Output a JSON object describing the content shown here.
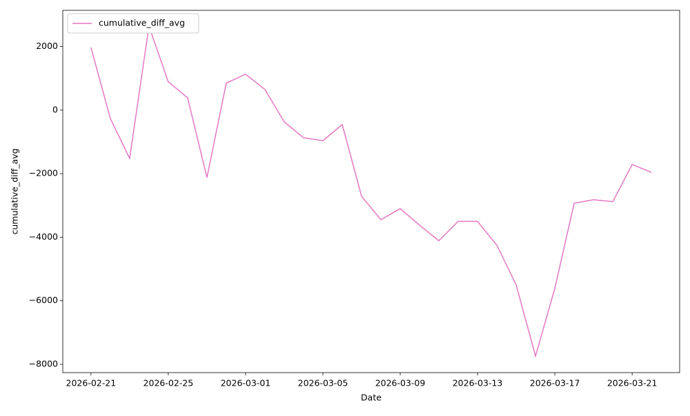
{
  "chart_data": {
    "type": "line",
    "xlabel": "Date",
    "ylabel": "cumulative_diff_avg",
    "x": [
      "2026-02-21",
      "2026-02-22",
      "2026-02-23",
      "2026-02-24",
      "2026-02-25",
      "2026-02-26",
      "2026-02-27",
      "2026-02-28",
      "2026-03-01",
      "2026-03-02",
      "2026-03-03",
      "2026-03-04",
      "2026-03-05",
      "2026-03-06",
      "2026-03-07",
      "2026-03-08",
      "2026-03-09",
      "2026-03-10",
      "2026-03-11",
      "2026-03-12",
      "2026-03-13",
      "2026-03-14",
      "2026-03-15",
      "2026-03-16",
      "2026-03-17",
      "2026-03-18",
      "2026-03-19",
      "2026-03-20",
      "2026-03-21",
      "2026-03-22"
    ],
    "series": [
      {
        "name": "cumulative_diff_avg",
        "color": "#e377c2",
        "values": [
          1970,
          -260,
          -1520,
          2640,
          890,
          390,
          -2120,
          850,
          1130,
          650,
          -370,
          -870,
          -960,
          -455,
          -2710,
          -3450,
          -3100,
          -3620,
          -4110,
          -3500,
          -3500,
          -4250,
          -5500,
          -7740,
          -5610,
          -2930,
          -2820,
          -2880,
          -1710,
          -1960
        ]
      }
    ],
    "xlim": [
      "2026-02-19T13:00",
      "2026-03-23T11:00"
    ],
    "xticks": [
      "2026-02-21",
      "2026-02-25",
      "2026-03-01",
      "2026-03-05",
      "2026-03-09",
      "2026-03-13",
      "2026-03-17",
      "2026-03-21"
    ],
    "ylim": [
      -8260,
      3140
    ],
    "yticks": [
      {
        "value": -8000,
        "label": "−8000"
      },
      {
        "value": -6000,
        "label": "−6000"
      },
      {
        "value": -4000,
        "label": "−4000"
      },
      {
        "value": -2000,
        "label": "−2000"
      },
      0,
      2000
    ],
    "legend": "upper left",
    "grid": false
  }
}
